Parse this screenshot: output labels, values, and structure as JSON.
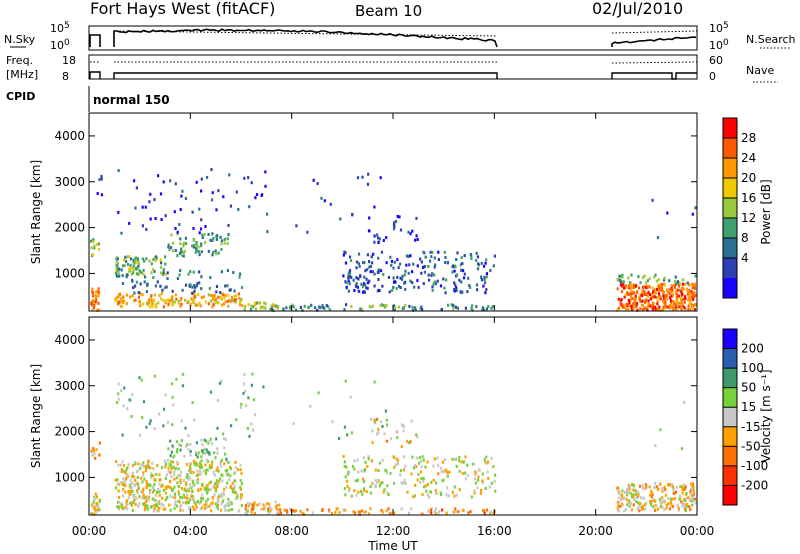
{
  "header": {
    "title": "Fort Hays West (fitACF)",
    "beam": "Beam 10",
    "date": "02/Jul/2010"
  },
  "panels": {
    "nsky_label": "N.Sky",
    "nsearch_label": "N.Search",
    "freq_label_1": "Freq.",
    "freq_label_2": "[MHz]",
    "nave_label": "Nave",
    "cpid_label": "CPID",
    "cpid_value": "normal 150",
    "noise_left_ticks": [
      "10^5",
      "10^0"
    ],
    "noise_right_ticks": [
      "10^5",
      "10^0"
    ],
    "freq_left_ticks": [
      "18",
      "8"
    ],
    "nave_right_ticks": [
      "60",
      "0"
    ]
  },
  "chart_data": [
    {
      "type": "heatmap",
      "name": "Power",
      "ylabel": "Slant Range [km]",
      "ylim": [
        180,
        4500
      ],
      "yticks": [
        1000,
        2000,
        3000,
        4000
      ],
      "xlim_hours": [
        0,
        24
      ],
      "colorbar": {
        "label": "Power [dB]",
        "ticks": [
          "28",
          "24",
          "20",
          "16",
          "12",
          "8",
          "4"
        ],
        "colors": [
          "#ff0000",
          "#ff5a00",
          "#ff9800",
          "#f0c800",
          "#9ac83c",
          "#3ea06e",
          "#2a6f90",
          "#2a3fb0",
          "#1a00ff"
        ]
      }
    },
    {
      "type": "heatmap",
      "name": "Velocity",
      "ylabel": "Slant Range [km]",
      "ylim": [
        180,
        4500
      ],
      "yticks": [
        1000,
        2000,
        3000,
        4000
      ],
      "xlim_hours": [
        0,
        24
      ],
      "colorbar": {
        "label": "Velocity [m s⁻¹]",
        "ticks": [
          "200",
          "100",
          "50",
          "15",
          "-15",
          "-50",
          "-100",
          "-200"
        ],
        "colors": [
          "#1a00ff",
          "#2a5fb0",
          "#3e9a6e",
          "#77d13a",
          "#c8c8c8",
          "#ffa000",
          "#ff7000",
          "#ff3000",
          "#ff0000"
        ]
      }
    }
  ],
  "xaxis": {
    "label": "Time UT",
    "ticks": [
      "00:00",
      "04:00",
      "08:00",
      "12:00",
      "16:00",
      "20:00",
      "00:00"
    ]
  }
}
